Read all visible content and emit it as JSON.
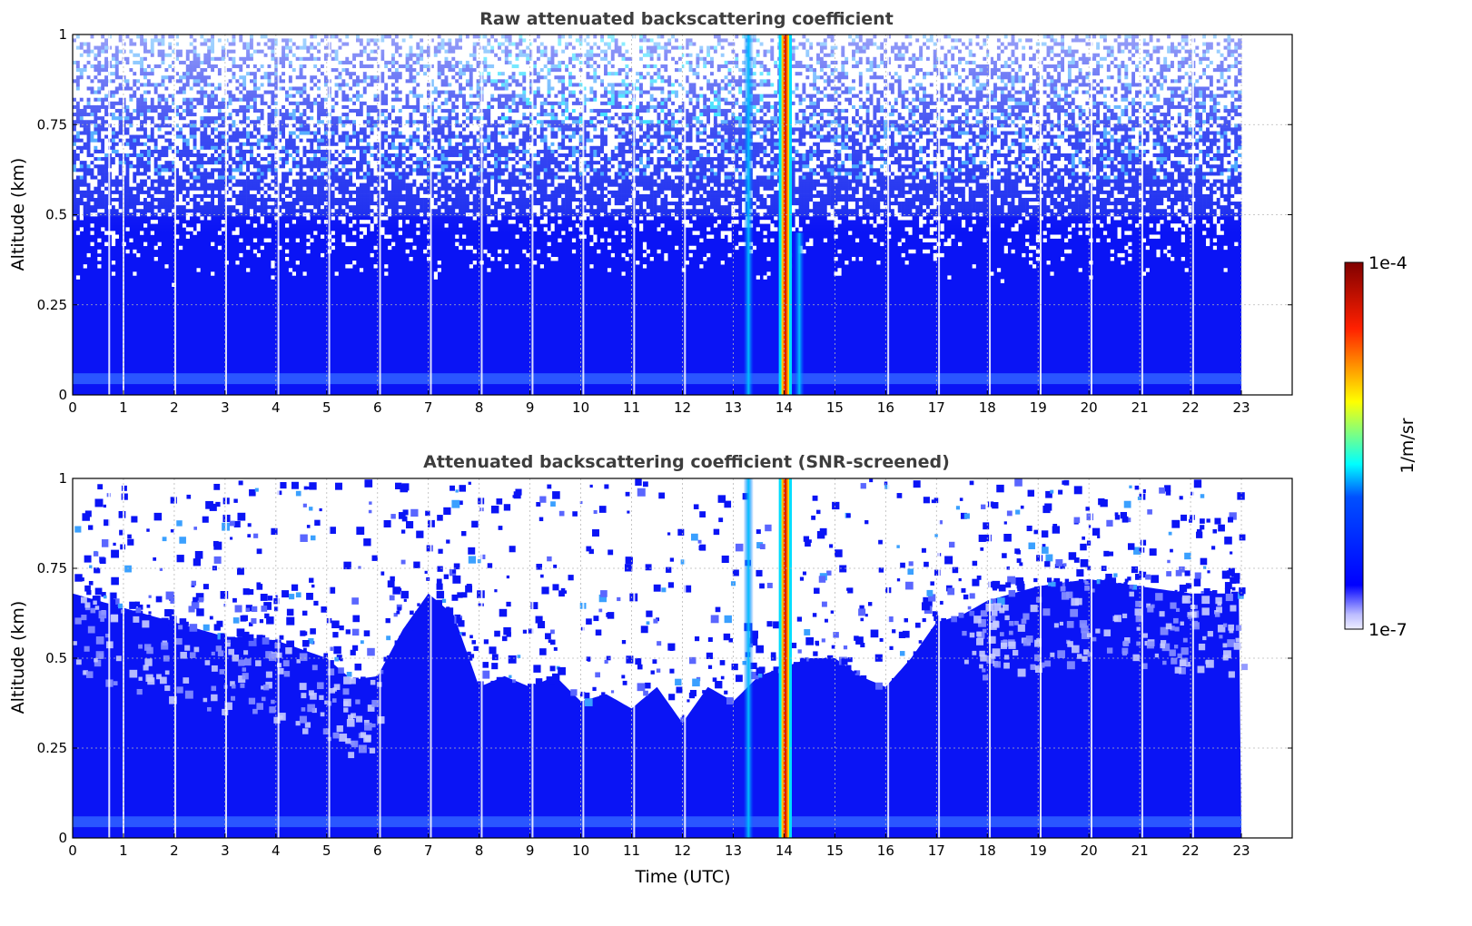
{
  "chart_data": [
    {
      "type": "heatmap",
      "title": "Raw attenuated backscattering coefficient",
      "xlabel": "",
      "ylabel": "Altitude (km)",
      "xlim": [
        0,
        24
      ],
      "ylim": [
        0,
        1
      ],
      "x_ticks": [
        "0",
        "1",
        "2",
        "3",
        "4",
        "5",
        "6",
        "7",
        "8",
        "9",
        "10",
        "11",
        "12",
        "13",
        "14",
        "15",
        "16",
        "17",
        "18",
        "19",
        "20",
        "21",
        "22",
        "23"
      ],
      "y_ticks": [
        "0",
        "0.25",
        "0.5",
        "0.75",
        "1"
      ],
      "data_extent_hours": [
        0,
        23
      ],
      "grid": true,
      "data_gaps_hours": [
        0.72,
        1.0,
        2.02,
        3.02,
        4.05,
        5.05,
        6.05,
        7.05,
        8.05,
        9.05,
        10.05,
        11.05,
        12.05,
        16.05,
        17.05,
        18.05,
        19.05,
        20.05,
        21.05,
        22.05
      ],
      "features": [
        {
          "kind": "background",
          "value": "≈3e-7",
          "altitude_km": [
            0,
            0.5
          ],
          "time_hours": [
            0,
            23
          ]
        },
        {
          "kind": "noise",
          "value": "1e-7 – 3e-6",
          "altitude_km": [
            0.5,
            1
          ],
          "time_hours": [
            0,
            23
          ]
        },
        {
          "kind": "surface layer",
          "value": "≈6e-7",
          "altitude_km": [
            0.03,
            0.06
          ],
          "time_hours": [
            0,
            23
          ]
        },
        {
          "kind": "precipitation/cloud column",
          "value": "≈5e-5 – 1e-4",
          "altitude_km": [
            0,
            1
          ],
          "time_hours": [
            13.95,
            14.1
          ]
        },
        {
          "kind": "elevated signal",
          "value": "≈2e-6",
          "altitude_km": [
            0,
            1
          ],
          "time_hours": [
            13.2,
            13.4
          ]
        },
        {
          "kind": "elevated signal",
          "value": "≈2e-6",
          "altitude_km": [
            0,
            0.45
          ],
          "time_hours": [
            14.2,
            14.4
          ]
        }
      ]
    },
    {
      "type": "heatmap",
      "title": "Attenuated backscattering coefficient (SNR-screened)",
      "xlabel": "Time (UTC)",
      "ylabel": "Altitude (km)",
      "xlim": [
        0,
        24
      ],
      "ylim": [
        0,
        1
      ],
      "x_ticks": [
        "0",
        "1",
        "2",
        "3",
        "4",
        "5",
        "6",
        "7",
        "8",
        "9",
        "10",
        "11",
        "12",
        "13",
        "14",
        "15",
        "16",
        "17",
        "18",
        "19",
        "20",
        "21",
        "22",
        "23"
      ],
      "y_ticks": [
        "0",
        "0.25",
        "0.5",
        "0.75",
        "1"
      ],
      "data_extent_hours": [
        0,
        23
      ],
      "grid": true,
      "boundary_layer_top_km": [
        [
          0,
          0.68
        ],
        [
          1,
          0.64
        ],
        [
          2,
          0.6
        ],
        [
          3,
          0.56
        ],
        [
          4,
          0.55
        ],
        [
          5,
          0.5
        ],
        [
          5.5,
          0.44
        ],
        [
          6,
          0.45
        ],
        [
          6.5,
          0.58
        ],
        [
          7,
          0.68
        ],
        [
          7.5,
          0.62
        ],
        [
          8,
          0.42
        ],
        [
          8.5,
          0.45
        ],
        [
          9,
          0.42
        ],
        [
          9.5,
          0.45
        ],
        [
          10,
          0.38
        ],
        [
          10.5,
          0.4
        ],
        [
          11,
          0.36
        ],
        [
          11.5,
          0.42
        ],
        [
          12,
          0.32
        ],
        [
          12.5,
          0.42
        ],
        [
          13,
          0.38
        ],
        [
          13.5,
          0.45
        ],
        [
          14.5,
          0.5
        ],
        [
          15,
          0.5
        ],
        [
          15.5,
          0.45
        ],
        [
          16,
          0.42
        ],
        [
          16.5,
          0.5
        ],
        [
          17,
          0.6
        ],
        [
          17.5,
          0.62
        ],
        [
          18,
          0.66
        ],
        [
          19,
          0.7
        ],
        [
          20,
          0.72
        ],
        [
          21,
          0.7
        ],
        [
          22,
          0.68
        ],
        [
          23,
          0.68
        ]
      ],
      "features": [
        {
          "kind": "boundary layer",
          "value": "≈3e-7",
          "altitude_km": [
            0,
            "boundary_layer_top_km"
          ],
          "time_hours": [
            0,
            23
          ]
        },
        {
          "kind": "surface layer",
          "value": "≈6e-7",
          "altitude_km": [
            0.03,
            0.06
          ],
          "time_hours": [
            0,
            23
          ]
        },
        {
          "kind": "precipitation/cloud column",
          "value": "≈5e-5 – 1e-4",
          "altitude_km": [
            0,
            1
          ],
          "time_hours": [
            13.95,
            14.1
          ]
        },
        {
          "kind": "elevated signal",
          "value": "≈2e-6",
          "altitude_km": [
            0,
            1
          ],
          "time_hours": [
            13.2,
            13.4
          ]
        }
      ]
    }
  ],
  "colorbar": {
    "label": "1/m/sr",
    "max_label": "1e-4",
    "min_label": "1e-7",
    "colormap": "jet",
    "colors": [
      "#eeeeff",
      "#0000ff",
      "#00ffff",
      "#ffff00",
      "#ff0000",
      "#800000"
    ]
  }
}
